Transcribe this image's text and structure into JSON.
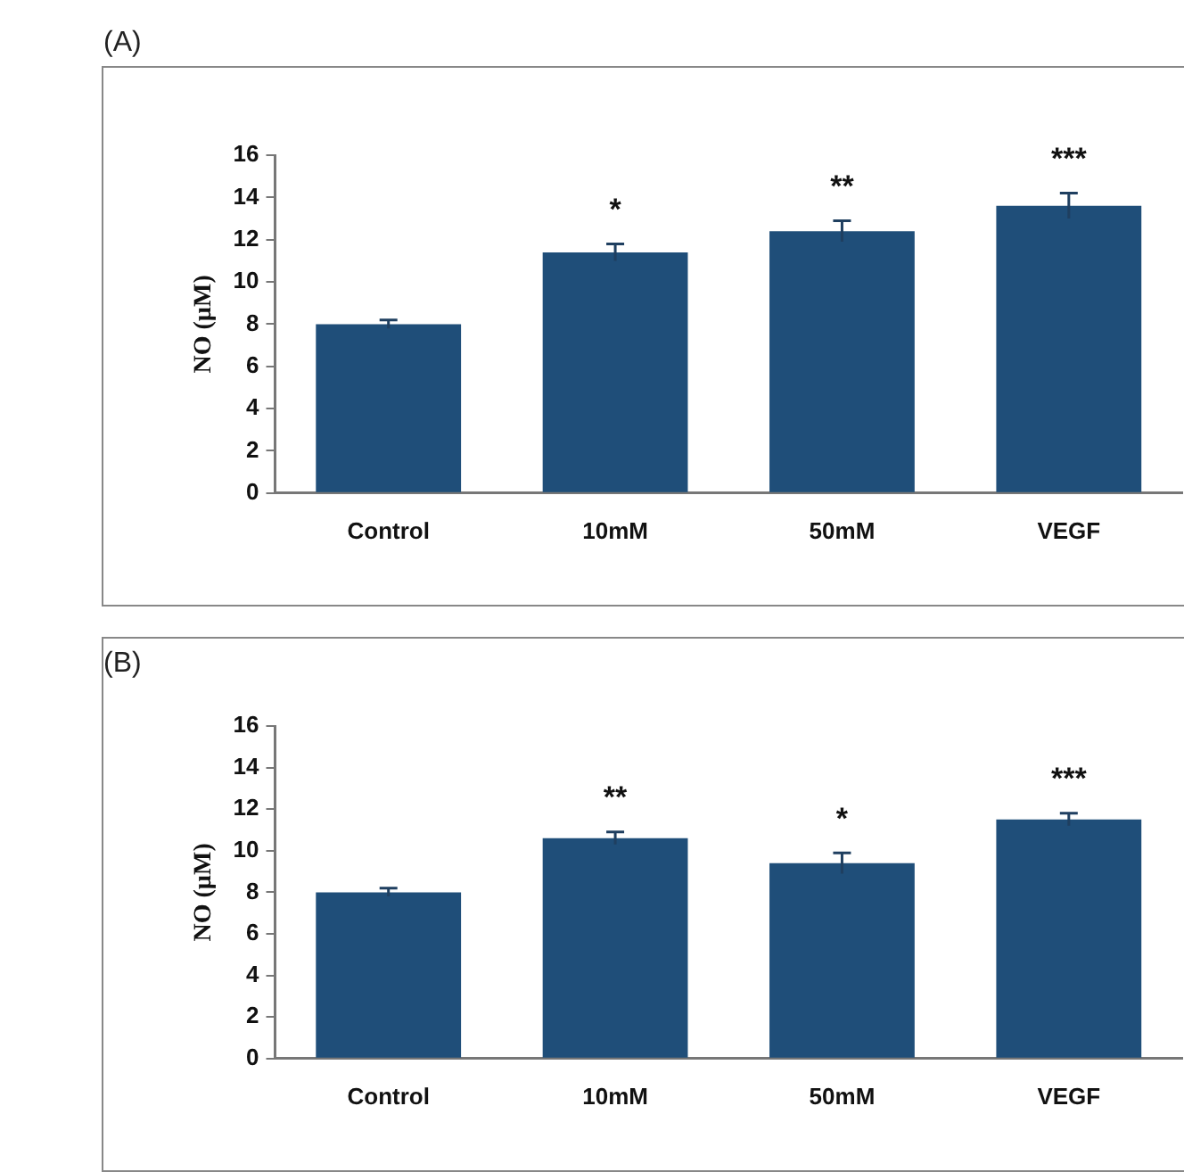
{
  "chart_data": [
    {
      "type": "bar",
      "title": "(A)",
      "ylabel": "NO (µM)",
      "categories": [
        "Control",
        "10mM",
        "50mM",
        "VEGF"
      ],
      "color": "#1f4e79",
      "values": [
        8.0,
        11.4,
        12.4,
        13.6
      ],
      "errors": [
        0.2,
        0.4,
        0.5,
        0.6
      ],
      "ylim": [
        0,
        16
      ],
      "yticks": [
        0,
        2,
        4,
        6,
        8,
        10,
        12,
        14,
        16
      ],
      "grid": false,
      "legend": false,
      "annotations": [
        {
          "text": "*",
          "x": "10mM",
          "y": 11.8
        },
        {
          "text": "**",
          "x": "50mM",
          "y": 12.9
        },
        {
          "text": "***",
          "x": "VEGF",
          "y": 14.2
        }
      ]
    },
    {
      "type": "bar",
      "title": "(B)",
      "ylabel": "NO (µM)",
      "categories": [
        "Control",
        "10mM",
        "50mM",
        "VEGF"
      ],
      "color": "#1f4e79",
      "values": [
        8.0,
        10.6,
        9.4,
        11.5
      ],
      "errors": [
        0.2,
        0.3,
        0.5,
        0.3
      ],
      "ylim": [
        0,
        16
      ],
      "yticks": [
        0,
        2,
        4,
        6,
        8,
        10,
        12,
        14,
        16
      ],
      "grid": false,
      "legend": false,
      "annotations": [
        {
          "text": "**",
          "x": "10mM",
          "y": 10.9
        },
        {
          "text": "*",
          "x": "50mM",
          "y": 9.9
        },
        {
          "text": "***",
          "x": "VEGF",
          "y": 11.8
        }
      ]
    }
  ]
}
